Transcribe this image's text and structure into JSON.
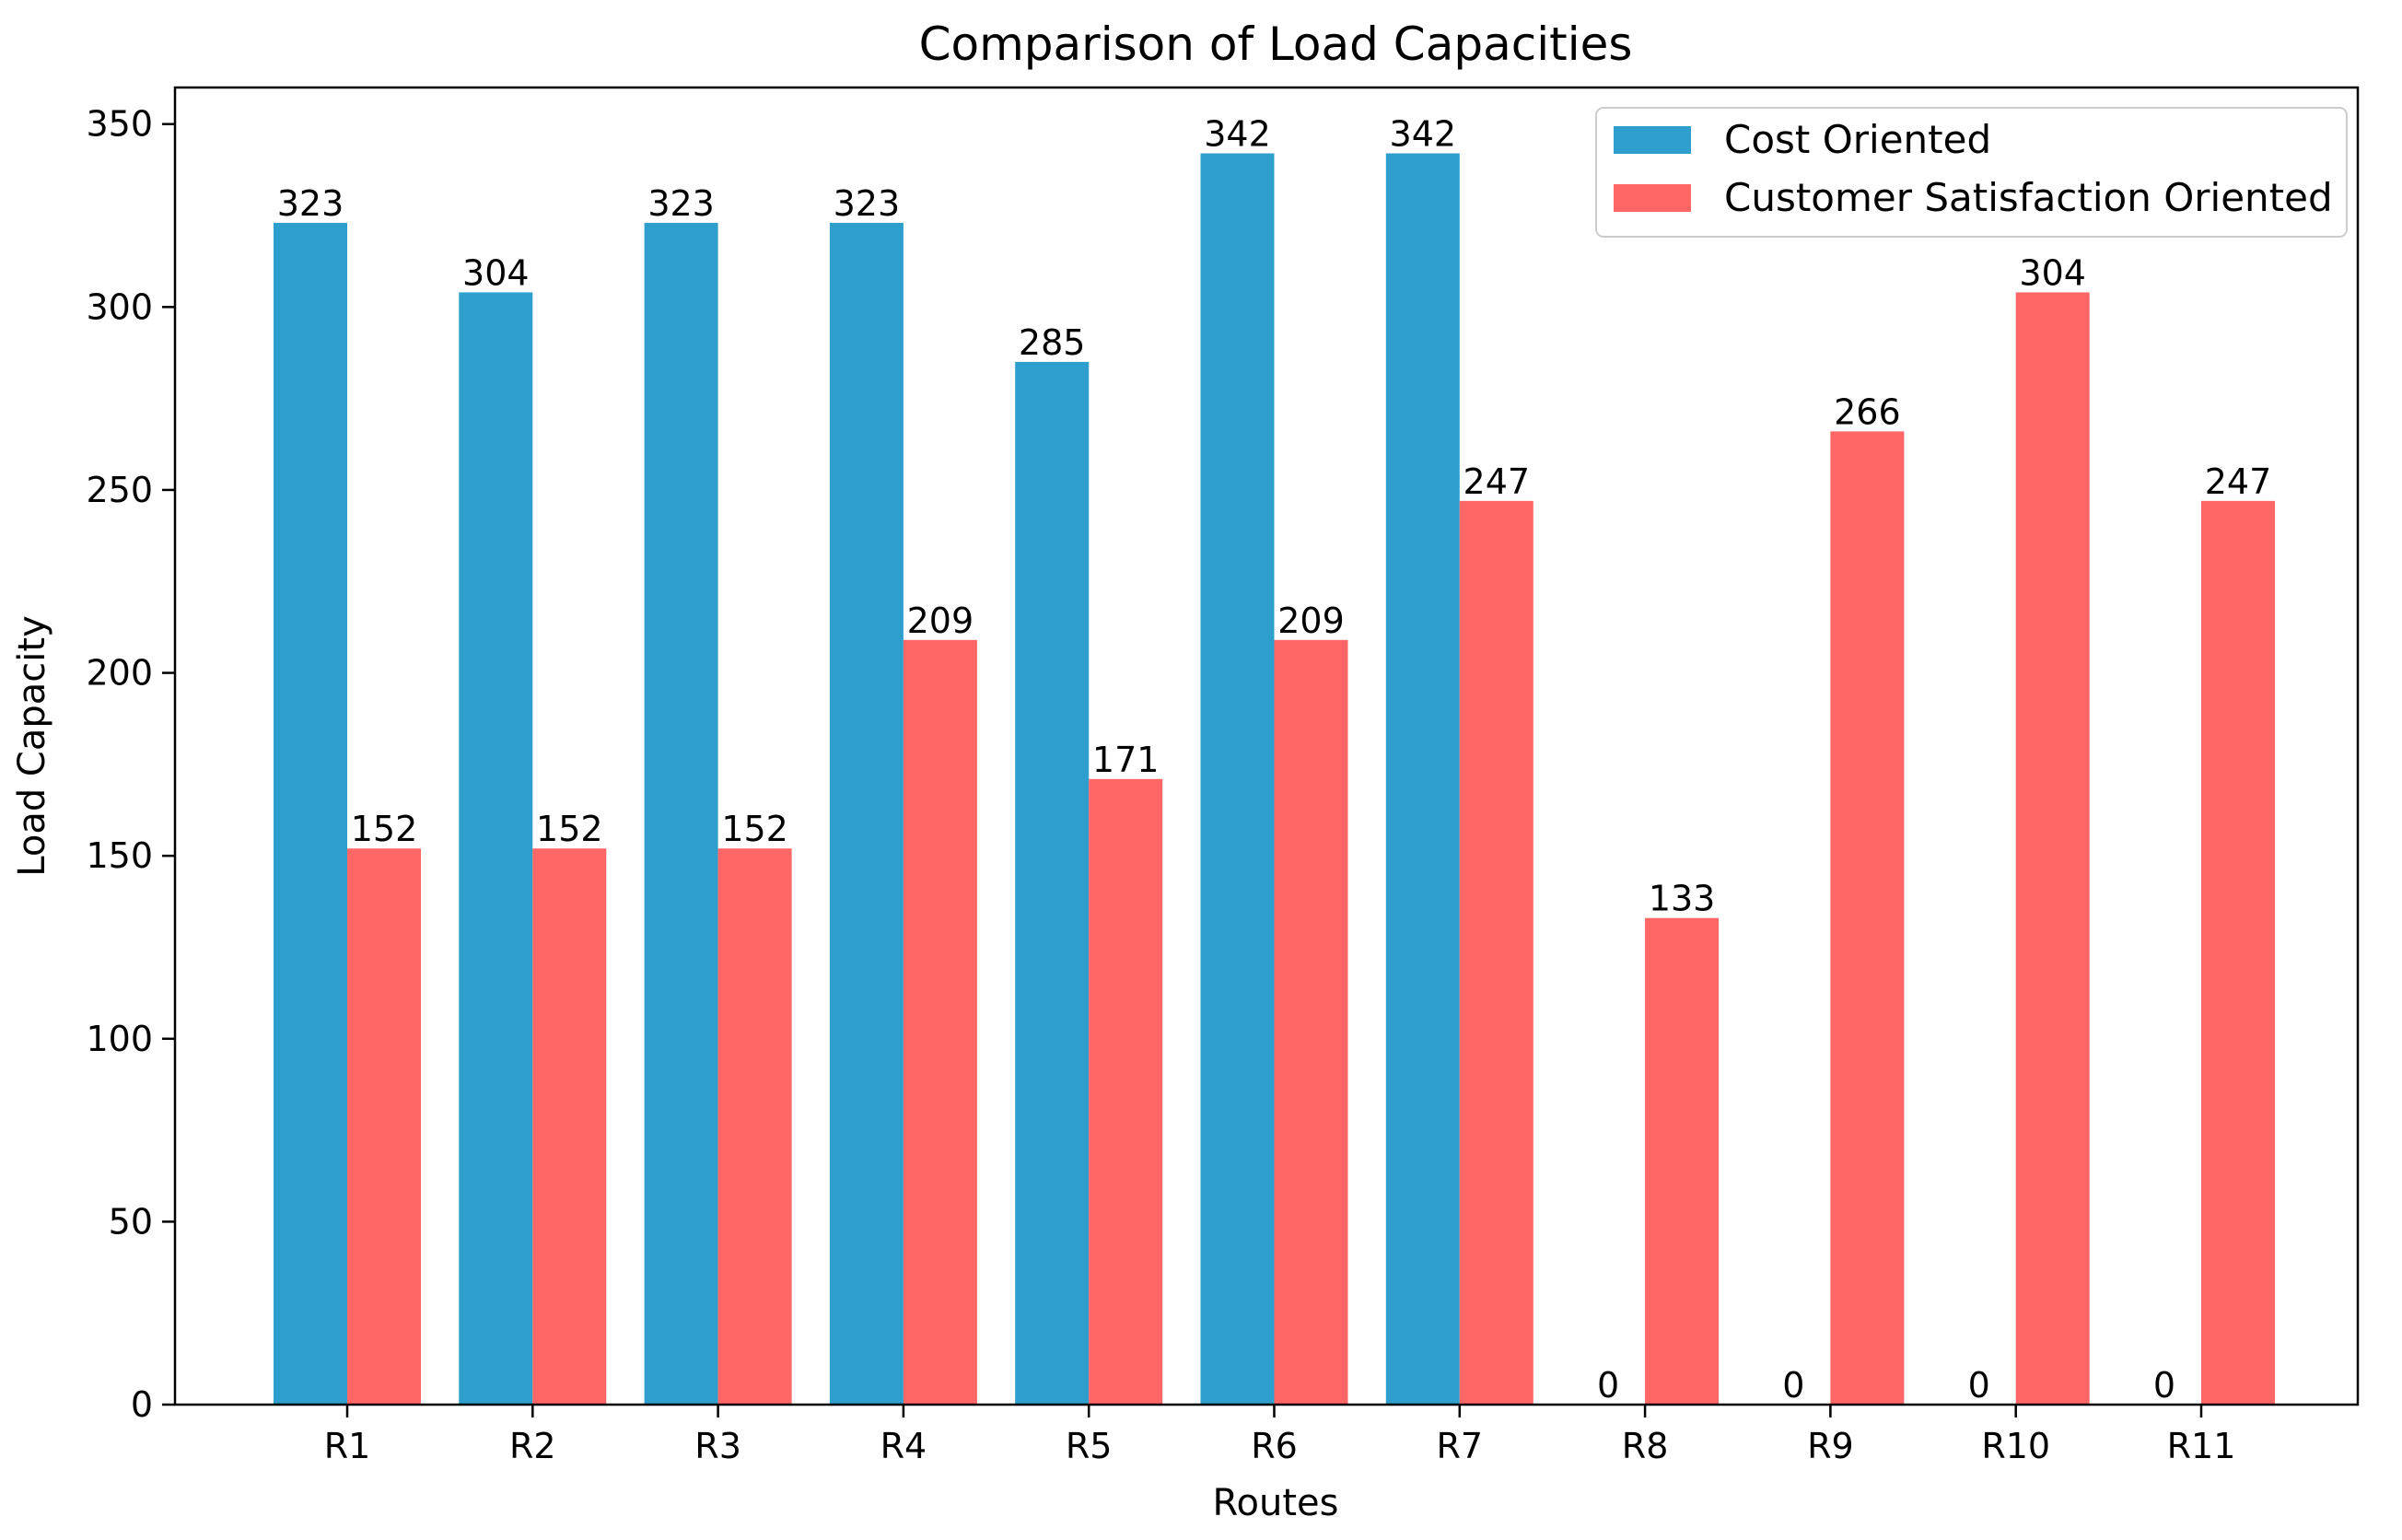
{
  "chart_data": {
    "type": "bar",
    "title": "Comparison of Load Capacities",
    "xlabel": "Routes",
    "ylabel": "Load Capacity",
    "categories": [
      "R1",
      "R2",
      "R3",
      "R4",
      "R5",
      "R6",
      "R7",
      "R8",
      "R9",
      "R10",
      "R11"
    ],
    "series": [
      {
        "name": "Cost Oriented",
        "color": "#2e9fcd",
        "values": [
          323,
          304,
          323,
          323,
          285,
          342,
          342,
          0,
          0,
          0,
          0
        ]
      },
      {
        "name": "Customer Satisfaction Oriented",
        "color": "#ff6666",
        "values": [
          152,
          152,
          152,
          209,
          171,
          209,
          247,
          133,
          266,
          304,
          247
        ]
      }
    ],
    "ylim": [
      0,
      360
    ],
    "yticks": [
      0,
      50,
      100,
      150,
      200,
      250,
      300,
      350
    ],
    "grid": false,
    "legend_position": "top-right"
  }
}
